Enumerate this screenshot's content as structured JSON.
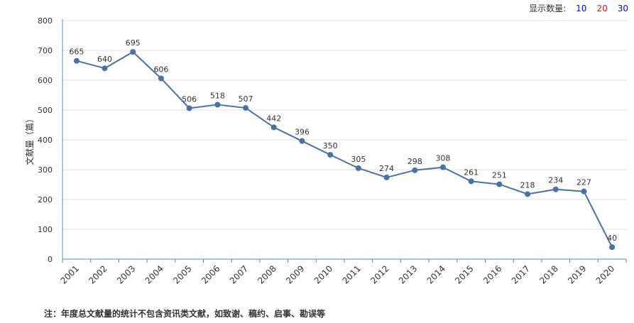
{
  "controls": {
    "label": "显示数量:",
    "options": [
      {
        "label": "10",
        "color": "#0000ff"
      },
      {
        "label": "20",
        "color": "#ff0000"
      },
      {
        "label": "30",
        "color": "#0000ff"
      }
    ]
  },
  "footnote": "注：年度总文献量的统计不包含资讯类文献，如致谢、稿约、启事、勘误等",
  "chart_data": {
    "type": "line",
    "title": "",
    "xlabel": "",
    "ylabel": "文献量（篇）",
    "ylim": [
      0,
      800
    ],
    "yticks": [
      0,
      100,
      200,
      300,
      400,
      500,
      600,
      700,
      800
    ],
    "grid": true,
    "color": "#4572a7",
    "categories": [
      "2001",
      "2002",
      "2003",
      "2004",
      "2005",
      "2006",
      "2007",
      "2008",
      "2009",
      "2010",
      "2011",
      "2012",
      "2013",
      "2014",
      "2015",
      "2016",
      "2017",
      "2018",
      "2019",
      "2020"
    ],
    "values": [
      665,
      640,
      695,
      606,
      506,
      518,
      507,
      442,
      396,
      350,
      305,
      274,
      298,
      308,
      261,
      251,
      218,
      234,
      227,
      40
    ]
  }
}
